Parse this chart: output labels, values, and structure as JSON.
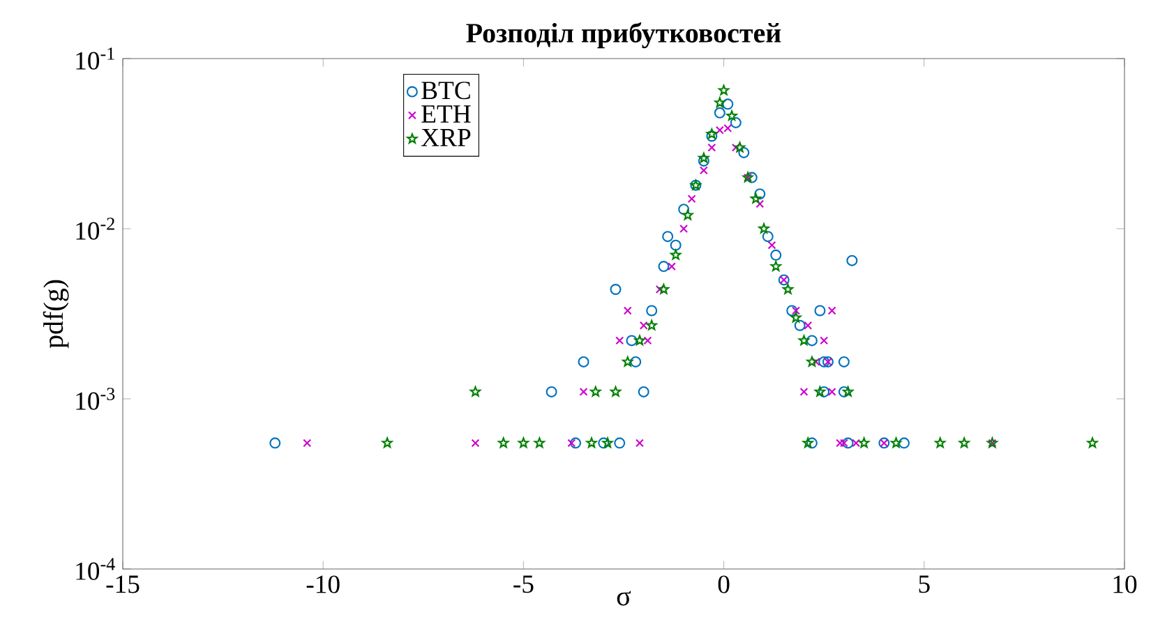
{
  "chart_data": {
    "type": "scatter",
    "title": "Розподіл прибутковостей",
    "xlabel": "σ",
    "ylabel": "pdf(g)",
    "log": "y",
    "xlim": [
      -15,
      10
    ],
    "xticks": [
      -15,
      -10,
      -5,
      0,
      5,
      10
    ],
    "ylim": [
      0.0001,
      0.1
    ],
    "yticks": [
      {
        "value": 0.0001,
        "label": "10$^{-4}$"
      },
      {
        "value": 0.001,
        "label": "10$^{-3}$"
      },
      {
        "value": 0.01,
        "label": "10$^{-2}$"
      },
      {
        "value": 0.1,
        "label": "10$^{-1}$"
      }
    ],
    "legend": "top left",
    "grid": false,
    "series": [
      {
        "name": "BTC",
        "color": "#0072bd",
        "marker": "circle",
        "x": [
          -11.2,
          -4.3,
          -3.5,
          -3.7,
          -3.0,
          -2.6,
          -2.7,
          -2.3,
          -2.2,
          -2.0,
          -1.8,
          -1.5,
          -1.4,
          -1.2,
          -1.0,
          -0.7,
          -0.5,
          -0.3,
          -0.1,
          0.1,
          0.3,
          0.5,
          0.7,
          0.9,
          1.1,
          1.3,
          1.5,
          1.7,
          1.9,
          2.2,
          2.4,
          3.2,
          2.5,
          2.6,
          3.0,
          2.5,
          3.0,
          2.2,
          3.1,
          4.0,
          4.5
        ],
        "values": [
          0.00055,
          0.0011,
          0.00165,
          0.00055,
          0.00055,
          0.00055,
          0.0044,
          0.0022,
          0.00165,
          0.0011,
          0.0033,
          0.006,
          0.009,
          0.008,
          0.013,
          0.018,
          0.025,
          0.035,
          0.048,
          0.054,
          0.042,
          0.028,
          0.02,
          0.016,
          0.009,
          0.007,
          0.005,
          0.0033,
          0.0027,
          0.0022,
          0.0033,
          0.0065,
          0.00165,
          0.00165,
          0.00165,
          0.0011,
          0.0011,
          0.00055,
          0.00055,
          0.00055,
          0.00055
        ]
      },
      {
        "name": "ETH",
        "color": "#cc00cc",
        "marker": "cross",
        "x": [
          -10.4,
          -6.2,
          -3.8,
          -2.1,
          -3.5,
          -2.6,
          -2.4,
          -2.0,
          -1.6,
          -1.3,
          -1.0,
          -0.8,
          -0.5,
          -0.3,
          -0.1,
          0.1,
          0.3,
          0.6,
          0.9,
          1.2,
          1.5,
          1.8,
          2.1,
          2.5,
          2.7,
          2.3,
          2.6,
          2.0,
          2.7,
          2.9,
          3.0,
          3.3,
          4.0,
          6.7,
          -1.9
        ],
        "values": [
          0.00055,
          0.00055,
          0.00055,
          0.00055,
          0.0011,
          0.0022,
          0.0033,
          0.0027,
          0.0044,
          0.006,
          0.01,
          0.015,
          0.022,
          0.03,
          0.038,
          0.039,
          0.03,
          0.02,
          0.014,
          0.008,
          0.005,
          0.0033,
          0.0027,
          0.0022,
          0.0033,
          0.00165,
          0.00165,
          0.0011,
          0.0011,
          0.00055,
          0.00055,
          0.00055,
          0.00055,
          0.00055,
          0.0022
        ]
      },
      {
        "name": "XRP",
        "color": "#008000",
        "marker": "star",
        "x": [
          -8.4,
          -6.2,
          -5.5,
          -5.0,
          -4.6,
          -3.3,
          -2.9,
          -3.2,
          -2.7,
          -2.4,
          -2.1,
          -1.8,
          -1.5,
          -1.2,
          -0.9,
          -0.7,
          -0.5,
          -0.3,
          -0.1,
          0.0,
          0.2,
          0.4,
          0.6,
          0.8,
          1.0,
          1.3,
          1.6,
          1.8,
          2.0,
          2.2,
          2.4,
          3.1,
          2.1,
          3.5,
          4.3,
          5.4,
          6.0,
          6.7,
          9.2
        ],
        "values": [
          0.00055,
          0.0011,
          0.00055,
          0.00055,
          0.00055,
          0.00055,
          0.00055,
          0.0011,
          0.0011,
          0.00165,
          0.0022,
          0.0027,
          0.0044,
          0.007,
          0.012,
          0.018,
          0.026,
          0.036,
          0.055,
          0.065,
          0.046,
          0.03,
          0.02,
          0.015,
          0.01,
          0.006,
          0.0044,
          0.003,
          0.0022,
          0.00165,
          0.0011,
          0.0011,
          0.00055,
          0.00055,
          0.00055,
          0.00055,
          0.00055,
          0.00055,
          0.00055
        ]
      }
    ]
  }
}
